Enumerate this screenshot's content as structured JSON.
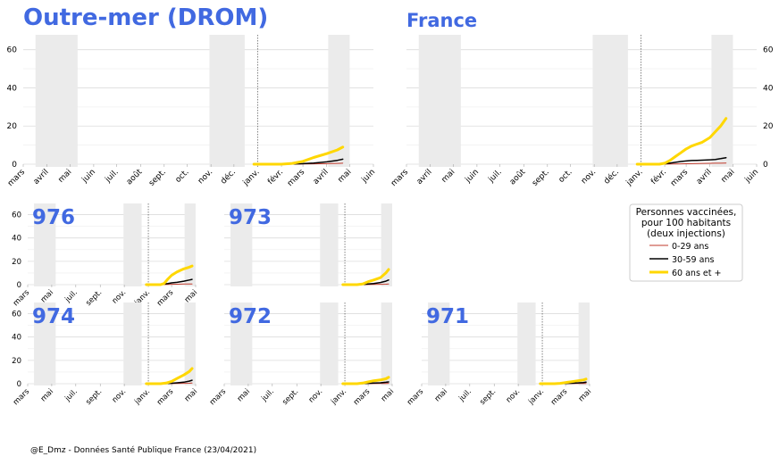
{
  "source_note": "@E_Dmz - Données Santé Publique France (23/04/2021)",
  "legend": {
    "title_lines": [
      "Personnes vaccinées,",
      "pour 100 habitants",
      "(deux injections)"
    ],
    "entries": [
      {
        "label": "0-29 ans",
        "color": "#c0392b"
      },
      {
        "label": "30-59 ans",
        "color": "#000000"
      },
      {
        "label": "60 ans et +",
        "color": "#ffd700"
      }
    ]
  },
  "colors": {
    "title": "#4169e1",
    "confinement": "#ebebeb",
    "grid": "#dddddd"
  },
  "chart_data": [
    {
      "type": "line",
      "title": "Outre-mer (DROM)",
      "x_ticks": [
        "mars",
        "avril",
        "mai",
        "juin",
        "juil.",
        "août",
        "sept.",
        "oct.",
        "nov.",
        "déc.",
        "janv.",
        "févr.",
        "mars",
        "avril",
        "mai",
        "juin"
      ],
      "ylim": [
        0,
        65
      ],
      "y_ticks": [
        0,
        20,
        40,
        60
      ],
      "y_axis_side": "left",
      "shaded_periods": [
        [
          "2020-03-17",
          "2020-05-11"
        ],
        [
          "2020-10-30",
          "2020-12-15"
        ],
        [
          "2021-04-03",
          "2021-05-01"
        ]
      ],
      "vline": "2021-01-01",
      "x": [
        "2020-12-27",
        "2021-01-15",
        "2021-02-01",
        "2021-02-15",
        "2021-03-01",
        "2021-03-15",
        "2021-04-01",
        "2021-04-15",
        "2021-04-22"
      ],
      "series": [
        {
          "name": "0-29 ans",
          "values": [
            0,
            0,
            0,
            0,
            0.1,
            0.2,
            0.3,
            0.4,
            0.5
          ]
        },
        {
          "name": "30-59 ans",
          "values": [
            0,
            0,
            0,
            0.1,
            0.3,
            0.6,
            1.2,
            2,
            2.6
          ]
        },
        {
          "name": "60 ans et +",
          "values": [
            0,
            0,
            0,
            0.4,
            1.5,
            3.5,
            5.5,
            7.5,
            9
          ]
        }
      ]
    },
    {
      "type": "line",
      "title": "France",
      "x_ticks": [
        "mars",
        "avril",
        "mai",
        "juin",
        "juil.",
        "août",
        "sept.",
        "oct.",
        "nov.",
        "déc.",
        "janv.",
        "févr.",
        "mars",
        "avril",
        "mai",
        "juin"
      ],
      "ylim": [
        0,
        65
      ],
      "y_ticks": [
        0,
        20,
        40,
        60
      ],
      "y_axis_side": "right",
      "shaded_periods": [
        [
          "2020-03-17",
          "2020-05-11"
        ],
        [
          "2020-10-30",
          "2020-12-15"
        ],
        [
          "2021-04-03",
          "2021-05-01"
        ]
      ],
      "vline": "2021-01-01",
      "x": [
        "2020-12-27",
        "2021-01-15",
        "2021-01-25",
        "2021-02-01",
        "2021-02-08",
        "2021-02-15",
        "2021-02-22",
        "2021-03-01",
        "2021-03-08",
        "2021-03-15",
        "2021-03-22",
        "2021-04-01",
        "2021-04-08",
        "2021-04-15",
        "2021-04-22"
      ],
      "series": [
        {
          "name": "0-29 ans",
          "values": [
            0,
            0,
            0,
            0.05,
            0.1,
            0.15,
            0.2,
            0.25,
            0.3,
            0.35,
            0.4,
            0.45,
            0.5,
            0.5,
            0.6
          ]
        },
        {
          "name": "30-59 ans",
          "values": [
            0,
            0,
            0,
            0.2,
            0.6,
            1,
            1.4,
            1.7,
            1.9,
            2,
            2.1,
            2.3,
            2.5,
            2.9,
            3.4
          ]
        },
        {
          "name": "60 ans et +",
          "values": [
            0,
            0,
            0,
            0.5,
            2,
            4,
            6,
            8,
            9.5,
            10.5,
            11.5,
            14,
            17,
            20,
            24
          ]
        }
      ]
    },
    {
      "type": "line",
      "title": "976",
      "x_ticks": [
        "mars",
        "mai",
        "juil.",
        "sept.",
        "nov.",
        "janv.",
        "mars",
        "mai"
      ],
      "ylim": [
        0,
        65
      ],
      "y_ticks": [
        0,
        20,
        40,
        60
      ],
      "y_axis_side": "left",
      "shaded_periods": [
        [
          "2020-03-17",
          "2020-05-11"
        ],
        [
          "2020-10-30",
          "2020-12-15"
        ],
        [
          "2021-04-03",
          "2021-05-01"
        ]
      ],
      "vline": "2021-01-01",
      "x": [
        "2020-12-27",
        "2021-01-15",
        "2021-02-01",
        "2021-02-10",
        "2021-02-20",
        "2021-03-01",
        "2021-03-15",
        "2021-04-01",
        "2021-04-15",
        "2021-04-22"
      ],
      "series": [
        {
          "name": "0-29 ans",
          "values": [
            0,
            0,
            0,
            0.1,
            0.2,
            0.3,
            0.4,
            0.5,
            0.6,
            0.6
          ]
        },
        {
          "name": "30-59 ans",
          "values": [
            0,
            0,
            0,
            0.5,
            1,
            1.5,
            2,
            3,
            4,
            4.5
          ]
        },
        {
          "name": "60 ans et +",
          "values": [
            0,
            0,
            0,
            1,
            5,
            8,
            11,
            13.5,
            15,
            16
          ]
        }
      ]
    },
    {
      "type": "line",
      "title": "973",
      "x_ticks": [],
      "ylim": [
        0,
        65
      ],
      "y_ticks": [],
      "y_axis_side": "none",
      "shaded_periods": [
        [
          "2020-03-17",
          "2020-05-11"
        ],
        [
          "2020-10-30",
          "2020-12-15"
        ],
        [
          "2021-04-03",
          "2021-05-01"
        ]
      ],
      "vline": "2021-01-01",
      "x": [
        "2020-12-27",
        "2021-01-15",
        "2021-02-01",
        "2021-02-15",
        "2021-03-01",
        "2021-03-15",
        "2021-04-01",
        "2021-04-15",
        "2021-04-22"
      ],
      "series": [
        {
          "name": "0-29 ans",
          "values": [
            0,
            0,
            0,
            0,
            0.1,
            0.2,
            0.3,
            0.4,
            0.5
          ]
        },
        {
          "name": "30-59 ans",
          "values": [
            0,
            0,
            0,
            0.2,
            0.6,
            1,
            1.8,
            3,
            4
          ]
        },
        {
          "name": "60 ans et +",
          "values": [
            0,
            0,
            0,
            0.5,
            2.5,
            4,
            6,
            10,
            13
          ]
        }
      ]
    },
    {
      "type": "line",
      "title": "974",
      "x_ticks": [
        "mars",
        "mai",
        "juil.",
        "sept.",
        "nov.",
        "janv.",
        "mars",
        "mai"
      ],
      "ylim": [
        0,
        65
      ],
      "y_ticks": [
        0,
        20,
        40,
        60
      ],
      "y_axis_side": "left",
      "shaded_periods": [
        [
          "2020-03-17",
          "2020-05-11"
        ],
        [
          "2020-10-30",
          "2020-12-15"
        ],
        [
          "2021-04-03",
          "2021-05-01"
        ]
      ],
      "vline": "2021-01-01",
      "x": [
        "2020-12-27",
        "2021-01-15",
        "2021-02-01",
        "2021-02-15",
        "2021-03-01",
        "2021-03-15",
        "2021-04-01",
        "2021-04-15",
        "2021-04-22"
      ],
      "series": [
        {
          "name": "0-29 ans",
          "values": [
            0,
            0,
            0,
            0,
            0.1,
            0.2,
            0.3,
            0.4,
            0.5
          ]
        },
        {
          "name": "30-59 ans",
          "values": [
            0,
            0,
            0,
            0.1,
            0.4,
            0.8,
            1.3,
            2.2,
            3
          ]
        },
        {
          "name": "60 ans et +",
          "values": [
            0,
            0,
            0,
            0.5,
            2,
            4.5,
            7.5,
            10.5,
            13
          ]
        }
      ]
    },
    {
      "type": "line",
      "title": "972",
      "x_ticks": [
        "mars",
        "mai",
        "juil.",
        "sept.",
        "nov.",
        "janv.",
        "mars",
        "mai"
      ],
      "ylim": [
        0,
        65
      ],
      "y_ticks": [],
      "y_axis_side": "none",
      "shaded_periods": [
        [
          "2020-03-17",
          "2020-05-11"
        ],
        [
          "2020-10-30",
          "2020-12-15"
        ],
        [
          "2021-04-03",
          "2021-05-01"
        ]
      ],
      "vline": "2021-01-01",
      "x": [
        "2020-12-27",
        "2021-01-15",
        "2021-02-01",
        "2021-02-15",
        "2021-03-01",
        "2021-03-15",
        "2021-04-01",
        "2021-04-15",
        "2021-04-22"
      ],
      "series": [
        {
          "name": "0-29 ans",
          "values": [
            0,
            0,
            0,
            0,
            0.05,
            0.1,
            0.15,
            0.2,
            0.3
          ]
        },
        {
          "name": "30-59 ans",
          "values": [
            0,
            0,
            0,
            0.1,
            0.3,
            0.5,
            0.8,
            1.2,
            1.5
          ]
        },
        {
          "name": "60 ans et +",
          "values": [
            0,
            0,
            0,
            0.5,
            1.5,
            2.5,
            3.2,
            4.2,
            5.5
          ]
        }
      ]
    },
    {
      "type": "line",
      "title": "971",
      "x_ticks": [
        "mars",
        "mai",
        "juil.",
        "sept.",
        "nov.",
        "janv.",
        "mars",
        "mai"
      ],
      "ylim": [
        0,
        65
      ],
      "y_ticks": [],
      "y_axis_side": "none",
      "shaded_periods": [
        [
          "2020-03-17",
          "2020-05-11"
        ],
        [
          "2020-10-30",
          "2020-12-15"
        ],
        [
          "2021-04-03",
          "2021-05-01"
        ]
      ],
      "vline": "2021-01-01",
      "x": [
        "2020-12-27",
        "2021-01-15",
        "2021-02-01",
        "2021-02-15",
        "2021-03-01",
        "2021-03-15",
        "2021-04-01",
        "2021-04-15",
        "2021-04-22"
      ],
      "series": [
        {
          "name": "0-29 ans",
          "values": [
            0,
            0,
            0,
            0,
            0.05,
            0.1,
            0.15,
            0.2,
            0.25
          ]
        },
        {
          "name": "30-59 ans",
          "values": [
            0,
            0,
            0,
            0.05,
            0.2,
            0.4,
            0.7,
            1,
            1.3
          ]
        },
        {
          "name": "60 ans et +",
          "values": [
            0,
            0,
            0,
            0.3,
            1,
            1.7,
            2.5,
            3.2,
            4
          ]
        }
      ]
    }
  ]
}
